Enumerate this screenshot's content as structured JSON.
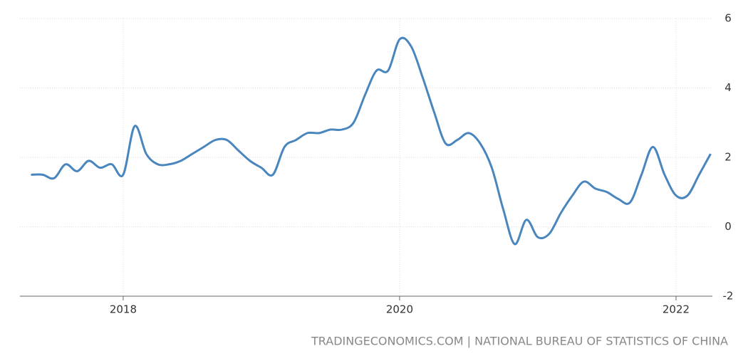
{
  "chart_data": {
    "type": "line",
    "x": [
      2017.333,
      2017.417,
      2017.5,
      2017.583,
      2017.667,
      2017.75,
      2017.833,
      2017.917,
      2018,
      2018.083,
      2018.167,
      2018.25,
      2018.333,
      2018.417,
      2018.5,
      2018.583,
      2018.667,
      2018.75,
      2018.833,
      2018.917,
      2019,
      2019.083,
      2019.167,
      2019.25,
      2019.333,
      2019.417,
      2019.5,
      2019.583,
      2019.667,
      2019.75,
      2019.833,
      2019.917,
      2020,
      2020.083,
      2020.167,
      2020.25,
      2020.333,
      2020.417,
      2020.5,
      2020.583,
      2020.667,
      2020.75,
      2020.833,
      2020.917,
      2021,
      2021.083,
      2021.167,
      2021.25,
      2021.333,
      2021.417,
      2021.5,
      2021.583,
      2021.667,
      2021.75,
      2021.833,
      2021.917,
      2022,
      2022.083,
      2022.167,
      2022.25
    ],
    "series": [
      {
        "color": "#4a86be",
        "values": [
          1.5,
          1.5,
          1.4,
          1.8,
          1.6,
          1.9,
          1.7,
          1.8,
          1.5,
          2.9,
          2.1,
          1.8,
          1.8,
          1.9,
          2.1,
          2.3,
          2.5,
          2.5,
          2.2,
          1.9,
          1.7,
          1.5,
          2.3,
          2.5,
          2.7,
          2.7,
          2.8,
          2.8,
          3.0,
          3.8,
          4.5,
          4.5,
          5.4,
          5.2,
          4.3,
          3.3,
          2.4,
          2.5,
          2.7,
          2.4,
          1.7,
          0.5,
          -0.5,
          0.2,
          -0.3,
          -0.2,
          0.4,
          0.9,
          1.3,
          1.1,
          1.0,
          0.8,
          0.7,
          1.5,
          2.3,
          1.5,
          0.9,
          0.9,
          1.5,
          2.1
        ]
      }
    ],
    "xlim": [
      2017.253,
      2022.263
    ],
    "xticks": [
      2018,
      2020,
      2022
    ],
    "ylim": [
      -2,
      6
    ],
    "yticks": [
      -2,
      0,
      2,
      4,
      6
    ],
    "grid": true,
    "source": "TRADINGECONOMICS.COM | NATIONAL BUREAU OF STATISTICS OF CHINA"
  }
}
